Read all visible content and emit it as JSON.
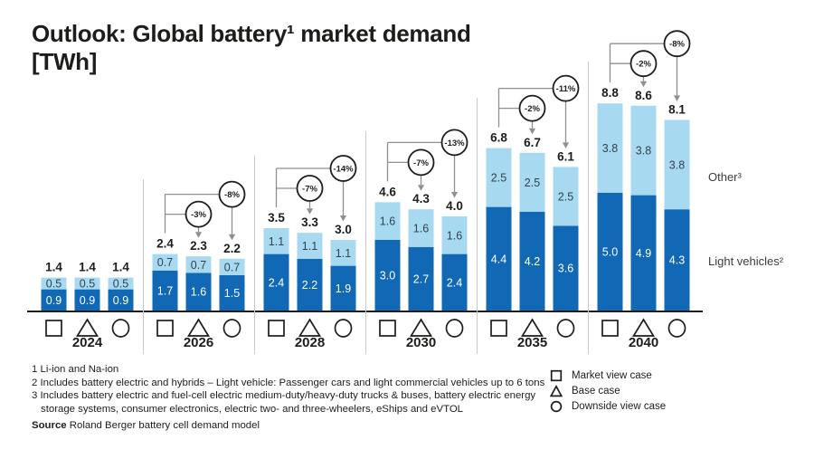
{
  "chart_data": {
    "type": "bar",
    "stacked": true,
    "title": "Outlook: Global battery¹ market demand",
    "unit": "[TWh]",
    "ylim": [
      0,
      9
    ],
    "grid": false,
    "legend_position": "bottom-right",
    "categories": [
      "2024",
      "2026",
      "2028",
      "2030",
      "2035",
      "2040"
    ],
    "cases": [
      {
        "name": "Market view case",
        "marker": "square"
      },
      {
        "name": "Base case",
        "marker": "triangle"
      },
      {
        "name": "Downside view case",
        "marker": "circle"
      }
    ],
    "series": [
      {
        "name": "Light vehicles²",
        "color": "#1168b4",
        "values": [
          [
            0.9,
            0.9,
            0.9
          ],
          [
            1.7,
            1.6,
            1.5
          ],
          [
            2.4,
            2.2,
            1.9
          ],
          [
            3.0,
            2.7,
            2.4
          ],
          [
            4.4,
            4.2,
            3.6
          ],
          [
            5.0,
            4.9,
            4.3
          ]
        ]
      },
      {
        "name": "Other³",
        "color": "#a7d9f1",
        "values": [
          [
            0.5,
            0.5,
            0.5
          ],
          [
            0.7,
            0.7,
            0.7
          ],
          [
            1.1,
            1.1,
            1.1
          ],
          [
            1.6,
            1.6,
            1.6
          ],
          [
            2.5,
            2.5,
            2.5
          ],
          [
            3.8,
            3.8,
            3.8
          ]
        ]
      }
    ],
    "totals": [
      [
        1.4,
        1.4,
        1.4
      ],
      [
        2.4,
        2.3,
        2.2
      ],
      [
        3.5,
        3.3,
        3.0
      ],
      [
        4.6,
        4.3,
        4.0
      ],
      [
        6.8,
        6.7,
        6.1
      ],
      [
        8.8,
        8.6,
        8.1
      ]
    ],
    "deltas": [
      null,
      [
        "-3%",
        "-8%"
      ],
      [
        "-7%",
        "-14%"
      ],
      [
        "-7%",
        "-13%"
      ],
      [
        "-2%",
        "-11%"
      ],
      [
        "-2%",
        "-8%"
      ]
    ]
  },
  "footnotes": [
    "1 Li-ion and Na-ion",
    "2 Includes battery electric and hybrids – Light vehicle: Passenger cars and light commercial vehicles up to 6 tons",
    "3 Includes battery electric and fuel-cell electric medium-duty/heavy-duty trucks & buses, battery electric energy",
    "storage systems, consumer electronics, electric two- and three-wheelers, eShips and eVTOL"
  ],
  "source": {
    "label": "Source",
    "text": "Roland Berger battery cell demand model"
  }
}
